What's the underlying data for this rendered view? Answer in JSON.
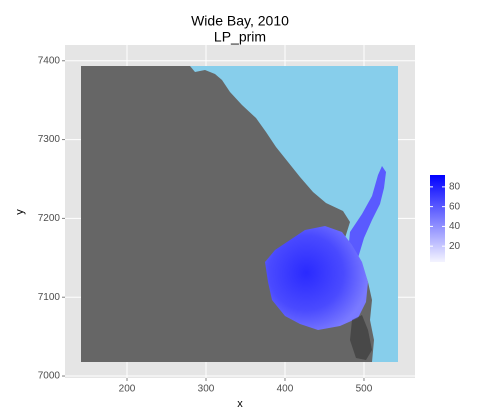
{
  "chart_data": {
    "type": "heatmap",
    "title": [
      "Wide Bay, 2010",
      "LP_prim"
    ],
    "x_label": "x",
    "y_label": "y",
    "xlim": [
      121.5,
      564.6
    ],
    "ylim": [
      6997.5,
      7420
    ],
    "xticks": [
      200,
      300,
      400,
      500
    ],
    "yticks": [
      7000,
      7100,
      7200,
      7300,
      7400
    ],
    "grid": true,
    "colorbar": {
      "lim": [
        4,
        92
      ],
      "ticks": [
        20,
        40,
        60,
        80
      ],
      "low": "#f4f4ff",
      "high": "#0000ff"
    }
  }
}
